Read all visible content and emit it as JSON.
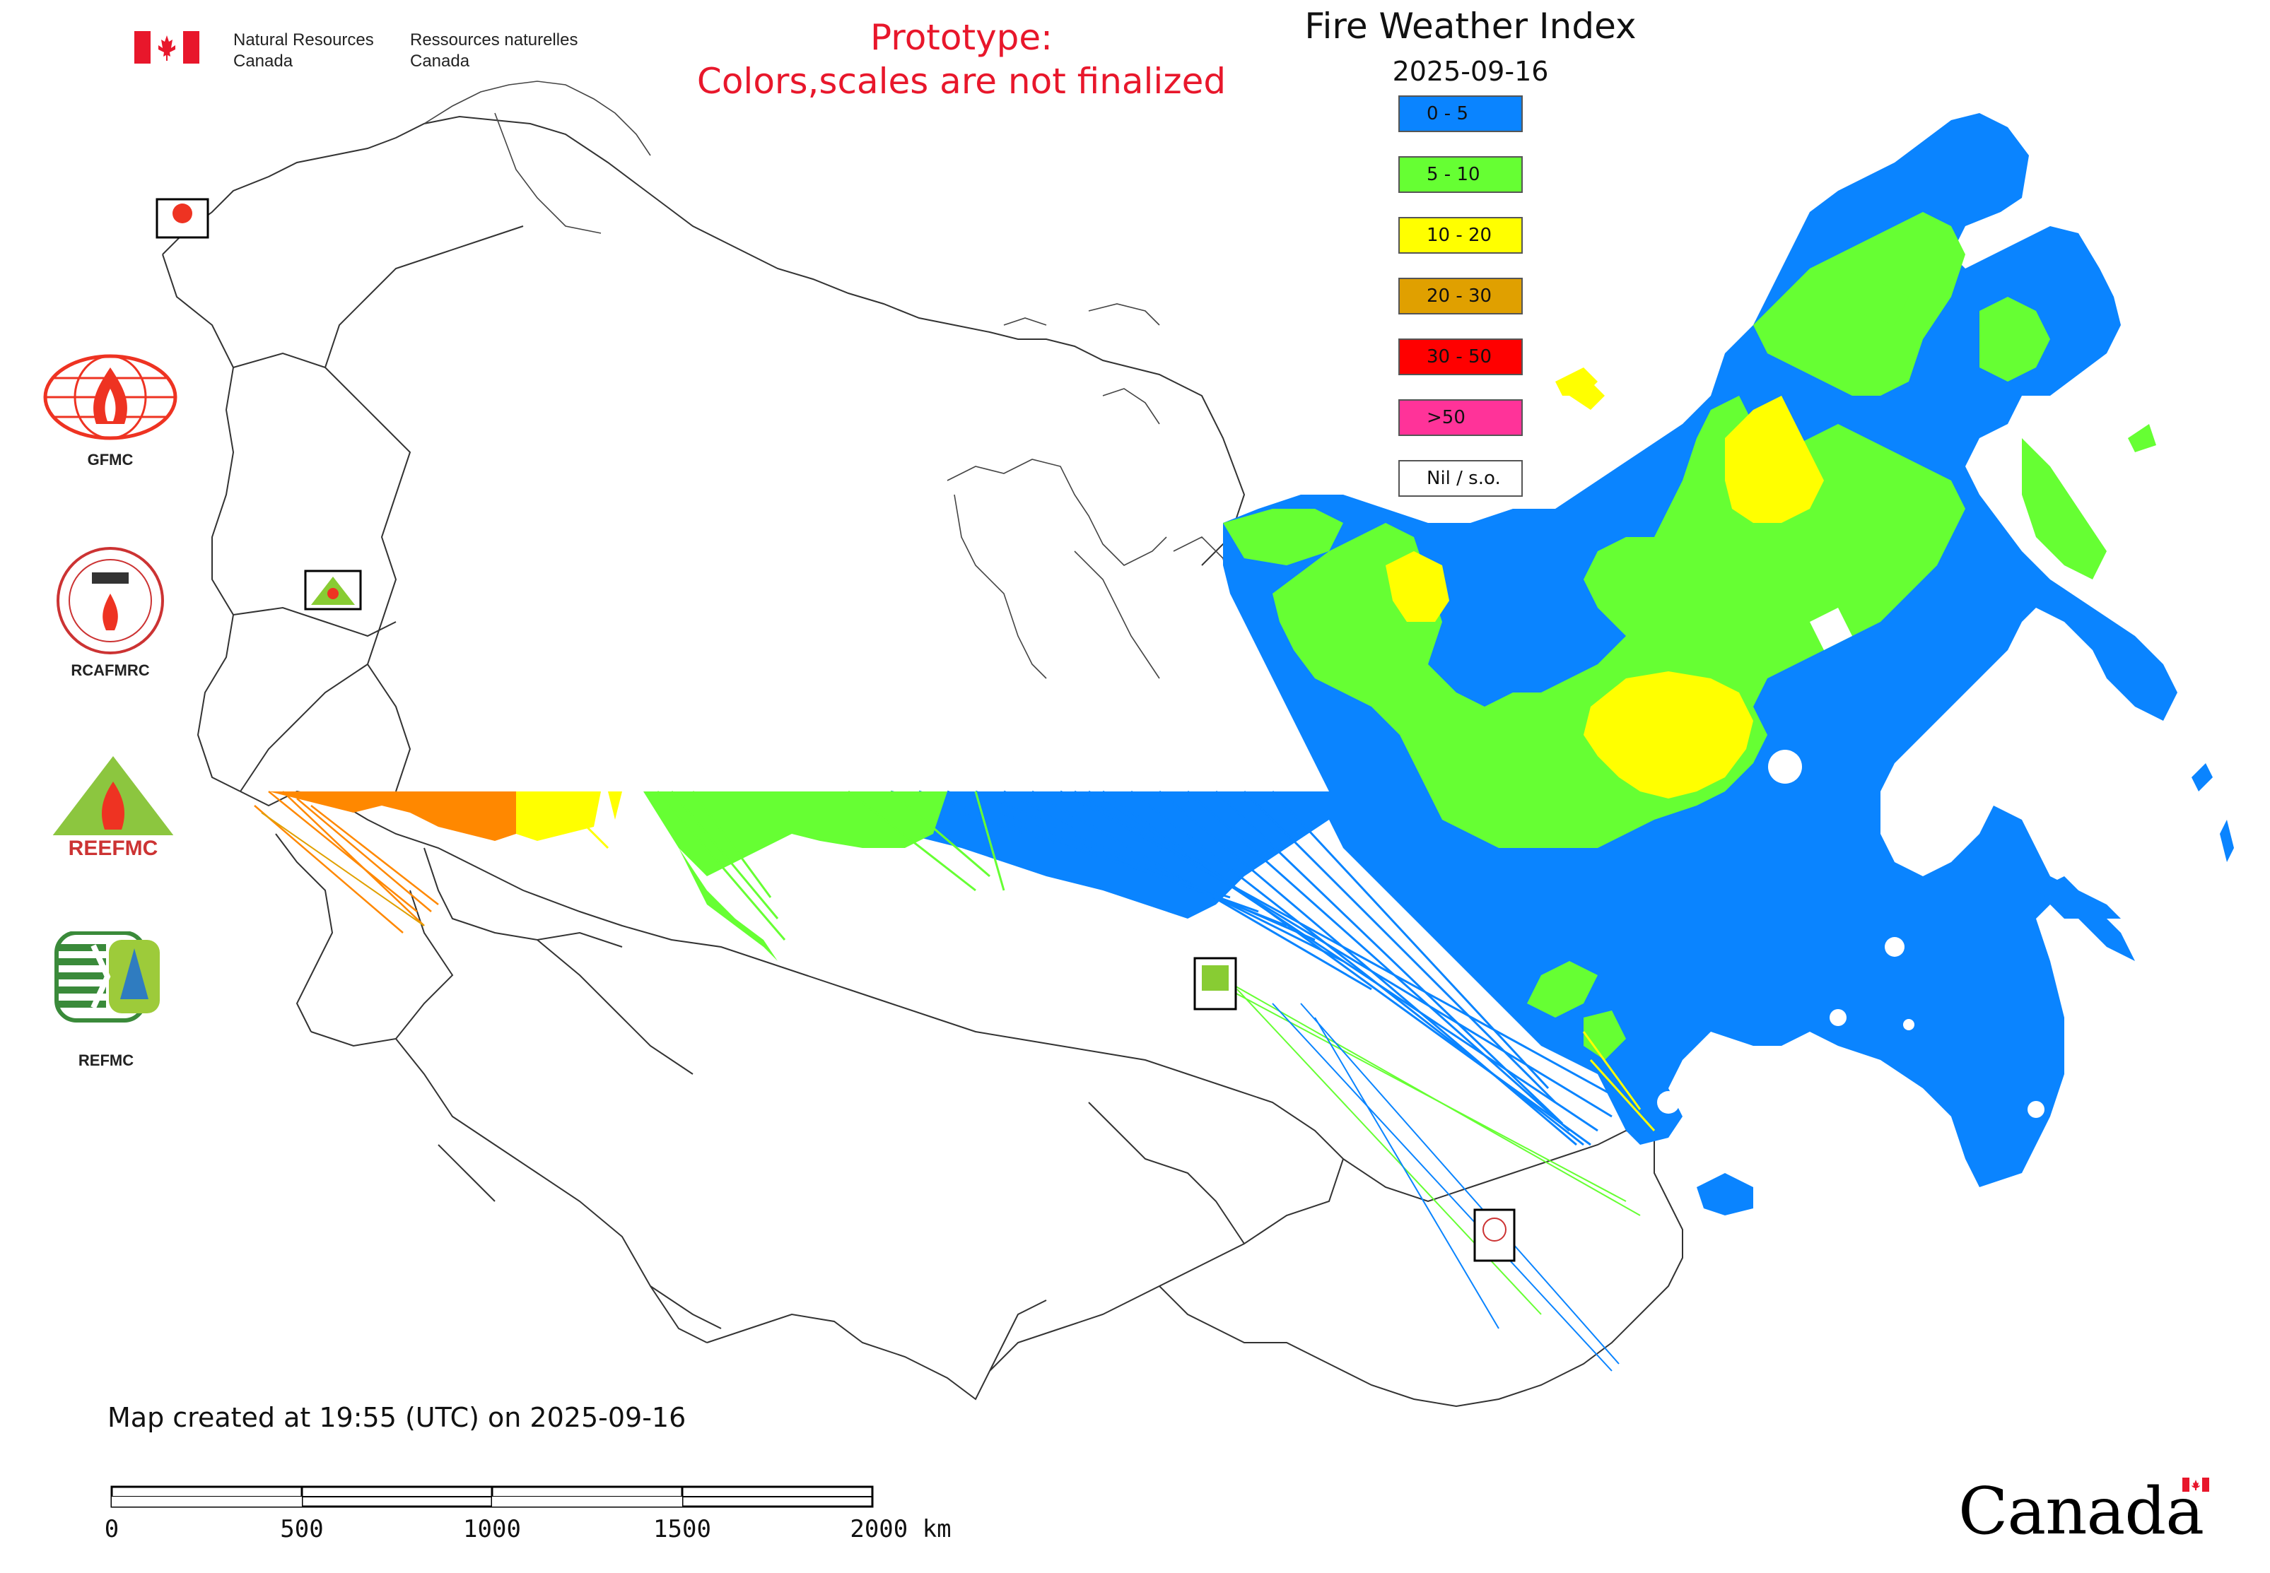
{
  "header": {
    "dept_en_line1": "Natural Resources",
    "dept_en_line2": "Canada",
    "dept_fr_line1": "Ressources naturelles",
    "dept_fr_line2": "Canada",
    "prototype_line1": "Prototype:",
    "prototype_line2": "Colors,scales are not finalized",
    "title": "Fire Weather Index",
    "date": "2025-09-16"
  },
  "legend": {
    "items": [
      {
        "label": "0 - 5",
        "color": "#0a84ff"
      },
      {
        "label": "5 - 10",
        "color": "#66ff33"
      },
      {
        "label": "10 - 20",
        "color": "#ffff00"
      },
      {
        "label": "20 - 30",
        "color": "#e0a000"
      },
      {
        "label": "30 - 50",
        "color": "#ff0000"
      },
      {
        "label": ">50",
        "color": "#ff3399"
      },
      {
        "label": "Nil / s.o.",
        "color": "#ffffff"
      }
    ]
  },
  "logos": [
    {
      "label": "GFMC",
      "icon": "gfmc-globe-flame-icon"
    },
    {
      "label": "RCAFMRC",
      "icon": "rcafmrc-seal-icon"
    },
    {
      "label": "REEFMC",
      "icon": "reefmc-triangle-flame-icon",
      "logo_text": "REEFMC"
    },
    {
      "label": "REFMC",
      "icon": "refmc-sigma-icon"
    }
  ],
  "footer": {
    "created": "Map created at 19:55 (UTC) on 2025-09-16",
    "scale_labels": [
      "0",
      "500",
      "1000",
      "1500",
      "2000 km"
    ],
    "wordmark": "Canada"
  },
  "colors": {
    "prototype_text": "#e8172b",
    "fwi_low": "#0a84ff",
    "fwi_moderate": "#66ff33",
    "fwi_high": "#ffff00",
    "fwi_very_high": "#e0a000",
    "fwi_extreme_orange": "#ff8800"
  }
}
